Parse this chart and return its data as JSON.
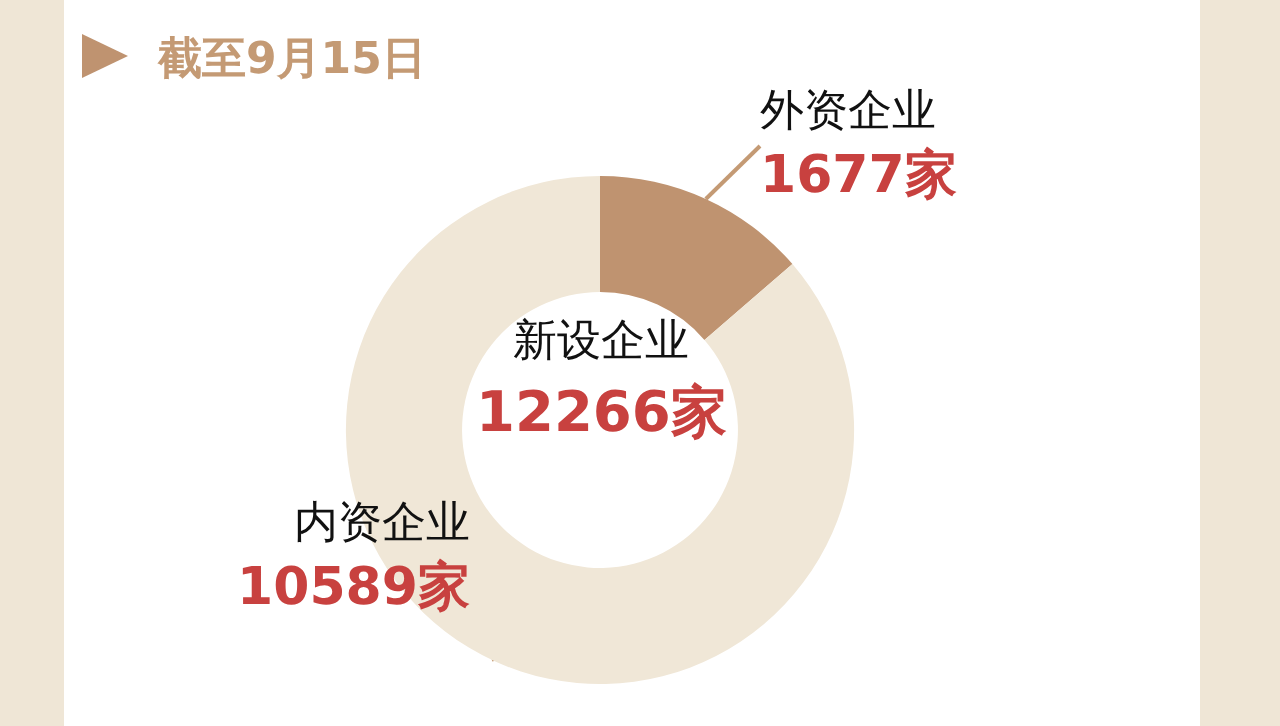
{
  "chart_data": {
    "type": "donut",
    "title": "截至9月15日",
    "categories": [
      "外资企业",
      "内资企业"
    ],
    "values": [
      1677,
      10589
    ],
    "colors": [
      "#bf9370",
      "#f0e7d7"
    ],
    "value_labels": [
      "1677家",
      "10589家"
    ],
    "annotations": [
      "新设企业",
      "12266家"
    ],
    "legend": false
  }
}
